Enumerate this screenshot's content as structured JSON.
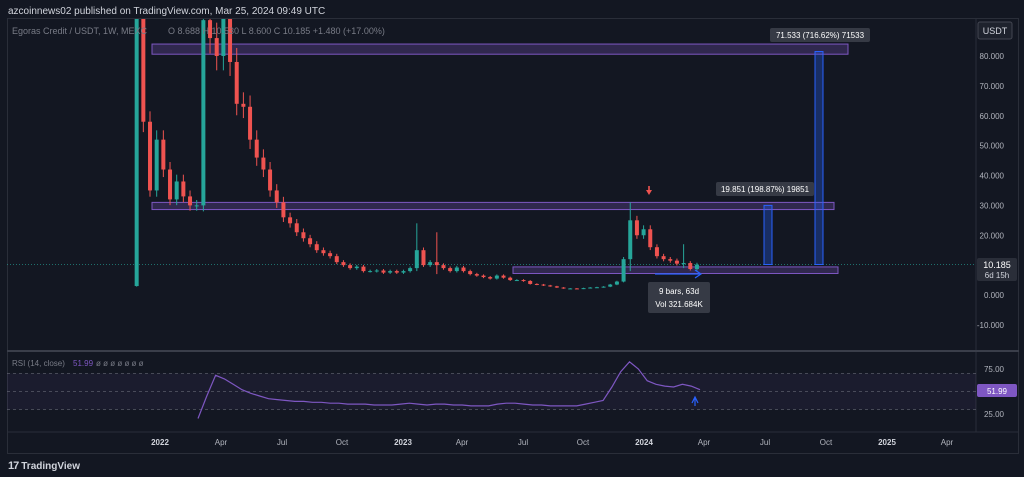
{
  "header": {
    "published_text": "azcoinnews02 published on TradingView.com, Mar 25, 2024 09:49 UTC"
  },
  "footer": {
    "brand": "TradingView",
    "logo_glyph": "17"
  },
  "chart": {
    "symbol_line": "Egoras Credit / USDT, 1W, MEXC",
    "ohlc_text": "O 8.688  H 10.530  L 8.600  C 10.185  +1.480 (+17.00%)",
    "currency_button": "USDT",
    "last_price": "10.185",
    "countdown": "6d 15h",
    "indicator_label": "RSI (14, close)",
    "indicator_value": "51.99",
    "indicator_placeholders": "ø ø ø ø ø ø ø",
    "annotations": {
      "top_measure": "71.533 (716.62%) 71533",
      "mid_measure": "19.851 (198.87%) 19851",
      "bars_label": "9 bars, 63d",
      "vol_label": "Vol 321.684K"
    }
  },
  "colors": {
    "background": "#131722",
    "up": "#26a69a",
    "down": "#ef5350",
    "zone": "#7e57c2",
    "measure": "#2962ff",
    "rsi": "#7e57c2"
  },
  "chart_data": [
    {
      "type": "candlestick",
      "title": "Egoras Credit / USDT, 1W, MEXC",
      "ylim": [
        -15,
        88
      ],
      "y_ticks": [
        "80.000",
        "70.000",
        "60.000",
        "50.000",
        "40.000",
        "30.000",
        "20.000",
        "10.000",
        "0.000",
        "-10.000"
      ],
      "x_ticks": [
        "2022",
        "Apr",
        "Jul",
        "Oct",
        "2023",
        "Apr",
        "Jul",
        "Oct",
        "2024",
        "Apr",
        "Jul",
        "Oct",
        "2025",
        "Apr"
      ],
      "zones": [
        {
          "from": 80.6,
          "to": 84.0
        },
        {
          "from": 28.6,
          "to": 31.0
        },
        {
          "from": 7.2,
          "to": 9.4
        }
      ],
      "path": [
        3,
        95,
        58,
        35,
        52,
        42,
        32,
        38,
        33,
        30,
        30,
        92,
        86,
        80,
        95,
        78,
        64,
        63,
        52,
        46,
        42,
        35,
        31,
        26,
        24,
        21,
        19,
        17,
        15,
        14,
        13,
        11,
        10,
        9,
        9.5,
        8,
        8,
        8.2,
        7.5,
        8,
        7.5,
        8,
        9,
        15,
        10,
        11,
        10,
        9,
        8,
        9.2,
        8,
        7,
        6.5,
        6,
        5.5,
        6.5,
        5.8,
        5,
        5,
        4.7,
        3.7,
        3.5,
        3.2,
        2.9,
        2.5,
        2.2,
        2.2,
        2.1,
        2.3,
        2.5,
        2.6,
        2.8,
        3.5,
        4.5,
        12,
        25,
        20,
        22,
        16,
        13,
        12,
        11.5,
        10.5,
        10.7,
        8.7,
        10.185
      ],
      "spikes": {
        "1": [
          3,
          95
        ],
        "11": [
          28,
          95
        ],
        "43": [
          8,
          24
        ],
        "46": [
          7,
          21
        ],
        "75": [
          8,
          31
        ],
        "83": [
          9,
          17
        ]
      },
      "last_price": 10.185
    },
    {
      "type": "line",
      "title": "RSI (14, close)",
      "ylim": [
        12,
        88
      ],
      "y_ticks": [
        "75.00",
        "50.00",
        "25.00"
      ],
      "bands": [
        30,
        50,
        70
      ],
      "values": [
        20,
        45,
        68,
        64,
        58,
        52,
        48,
        45,
        42,
        41,
        40,
        39,
        39,
        38,
        38,
        37,
        37,
        36,
        36,
        36,
        35,
        35,
        35,
        36,
        37,
        36,
        35,
        36,
        36,
        35,
        35,
        34,
        34,
        34,
        36,
        37,
        37,
        36,
        35,
        35,
        34,
        34,
        34,
        34,
        36,
        38,
        40,
        55,
        72,
        83,
        75,
        62,
        58,
        56,
        55,
        58,
        56,
        51.99
      ],
      "last_value": 51.99
    }
  ]
}
